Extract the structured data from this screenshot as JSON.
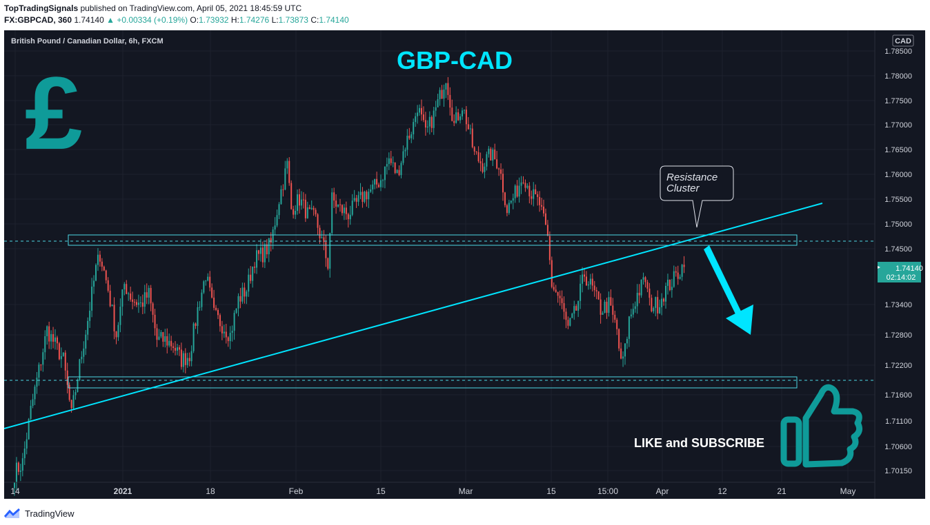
{
  "header": {
    "author": "TopTradingSignals",
    "published": " published on TradingView.com, April 05, 2021 18:45:59 UTC",
    "symbol": "FX:GBPCAD, 360",
    "last": "1.74140",
    "change": "▲ +0.00334 (+0.19%)",
    "o_label": "O:",
    "o": "1.73932",
    "h_label": "H:",
    "h": "1.74276",
    "l_label": "L:",
    "l": "1.73873",
    "c_label": "C:",
    "c": "1.74140"
  },
  "chart_title": "British Pound / Canadian Dollar, 6h, FXCM",
  "overlay_title": "GBP-CAD",
  "currency_badge": "CAD",
  "price_label": "1.74140",
  "countdown": "02:14:02",
  "callout": {
    "line1": "Resistance",
    "line2": "Cluster"
  },
  "cta": "LIKE and SUBSCRIBE",
  "footer_brand": "TradingView",
  "colors": {
    "bg": "#131722",
    "up": "#26a69a",
    "down": "#ef5350",
    "accent": "#00e5ff",
    "teal": "#0f9b99"
  },
  "icons": [
    "pound-sign-icon",
    "thumbs-up-icon",
    "tradingview-logo-icon",
    "down-arrow-icon"
  ],
  "chart_data": {
    "type": "candlestick",
    "title": "British Pound / Canadian Dollar, 6h, FXCM",
    "symbol": "GBPCAD",
    "timeframe": "6h",
    "x_tick_labels": [
      "14",
      "2021",
      "18",
      "Feb",
      "15",
      "Mar",
      "15",
      "15:00",
      "Apr",
      "12",
      "21",
      "May"
    ],
    "y_tick_labels": [
      "1.78500",
      "1.78000",
      "1.77500",
      "1.77000",
      "1.76500",
      "1.76000",
      "1.75500",
      "1.75000",
      "1.74500",
      "1.73400",
      "1.72800",
      "1.72200",
      "1.71600",
      "1.71100",
      "1.70600",
      "1.70150"
    ],
    "ylim": [
      1.6985,
      1.7893
    ],
    "path": [
      [
        0,
        1.701
      ],
      [
        4,
        1.703
      ],
      [
        8,
        1.713
      ],
      [
        12,
        1.721
      ],
      [
        16,
        1.729
      ],
      [
        20,
        1.726
      ],
      [
        24,
        1.723
      ],
      [
        28,
        1.712
      ],
      [
        32,
        1.722
      ],
      [
        36,
        1.731
      ],
      [
        40,
        1.741
      ],
      [
        42,
        1.744
      ],
      [
        46,
        1.737
      ],
      [
        50,
        1.728
      ],
      [
        54,
        1.738
      ],
      [
        58,
        1.735
      ],
      [
        62,
        1.734
      ],
      [
        66,
        1.736
      ],
      [
        70,
        1.727
      ],
      [
        74,
        1.727
      ],
      [
        78,
        1.726
      ],
      [
        82,
        1.723
      ],
      [
        86,
        1.724
      ],
      [
        90,
        1.733
      ],
      [
        94,
        1.74
      ],
      [
        98,
        1.732
      ],
      [
        102,
        1.73
      ],
      [
        106,
        1.728
      ],
      [
        110,
        1.735
      ],
      [
        114,
        1.737
      ],
      [
        118,
        1.743
      ],
      [
        122,
        1.744
      ],
      [
        126,
        1.746
      ],
      [
        130,
        1.755
      ],
      [
        134,
        1.762
      ],
      [
        136,
        1.753
      ],
      [
        140,
        1.755
      ],
      [
        144,
        1.752
      ],
      [
        148,
        1.751
      ],
      [
        152,
        1.745
      ],
      [
        154,
        1.742
      ],
      [
        156,
        1.755
      ],
      [
        160,
        1.753
      ],
      [
        164,
        1.752
      ],
      [
        168,
        1.754
      ],
      [
        172,
        1.756
      ],
      [
        176,
        1.757
      ],
      [
        180,
        1.759
      ],
      [
        184,
        1.763
      ],
      [
        188,
        1.76
      ],
      [
        192,
        1.766
      ],
      [
        196,
        1.77
      ],
      [
        198,
        1.774
      ],
      [
        202,
        1.768
      ],
      [
        206,
        1.772
      ],
      [
        210,
        1.777
      ],
      [
        212,
        1.78
      ],
      [
        216,
        1.77
      ],
      [
        220,
        1.774
      ],
      [
        222,
        1.771
      ],
      [
        226,
        1.764
      ],
      [
        230,
        1.762
      ],
      [
        234,
        1.764
      ],
      [
        238,
        1.762
      ],
      [
        242,
        1.753
      ],
      [
        246,
        1.756
      ],
      [
        250,
        1.76
      ],
      [
        254,
        1.756
      ],
      [
        258,
        1.754
      ],
      [
        262,
        1.747
      ],
      [
        264,
        1.738
      ],
      [
        268,
        1.735
      ],
      [
        272,
        1.729
      ],
      [
        276,
        1.733
      ],
      [
        280,
        1.74
      ],
      [
        284,
        1.737
      ],
      [
        288,
        1.733
      ],
      [
        292,
        1.734
      ],
      [
        296,
        1.729
      ],
      [
        298,
        1.722
      ],
      [
        300,
        1.725
      ],
      [
        302,
        1.731
      ],
      [
        306,
        1.736
      ],
      [
        310,
        1.739
      ],
      [
        312,
        1.734
      ],
      [
        316,
        1.734
      ],
      [
        320,
        1.737
      ],
      [
        324,
        1.739
      ],
      [
        328,
        1.7414
      ]
    ]
  }
}
